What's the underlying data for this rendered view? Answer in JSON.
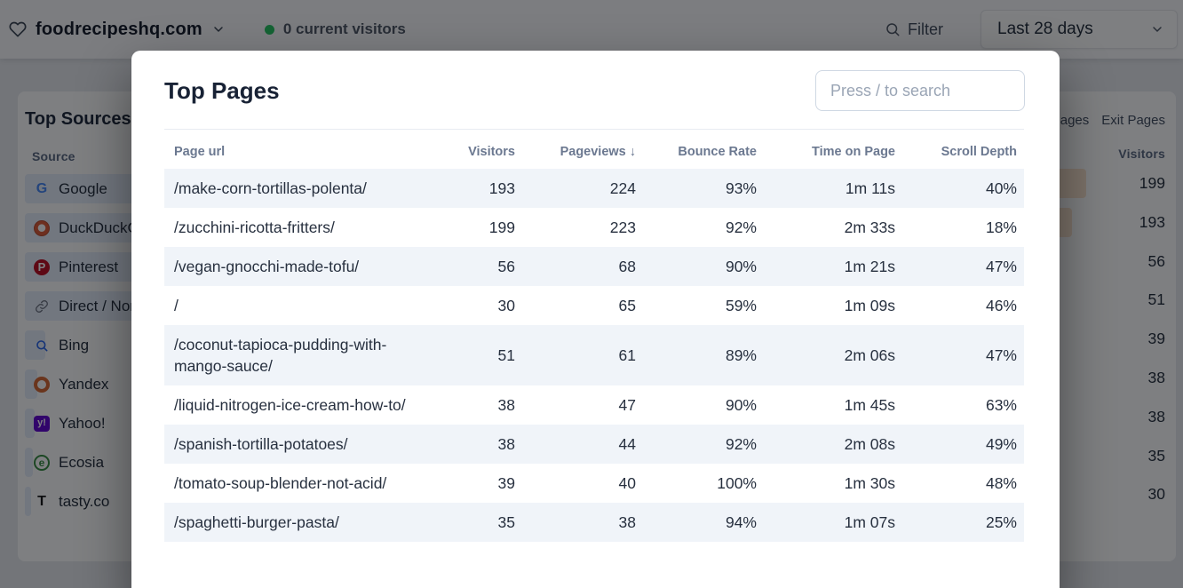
{
  "topbar": {
    "site": "foodrecipeshq.com",
    "current_visitors": "0 current visitors",
    "filter_label": "Filter",
    "date_range": "Last 28 days"
  },
  "sources_panel": {
    "title": "Top Sources",
    "column_header": "Source",
    "items": [
      {
        "name": "Google",
        "icon": "google",
        "bar_pct": 92
      },
      {
        "name": "DuckDuckGo",
        "icon": "duckduckgo",
        "bar_pct": 60
      },
      {
        "name": "Pinterest",
        "icon": "pinterest",
        "bar_pct": 28
      },
      {
        "name": "Direct / None",
        "icon": "direct",
        "bar_pct": 25
      },
      {
        "name": "Bing",
        "icon": "bing",
        "bar_pct": 3.7
      },
      {
        "name": "Yandex",
        "icon": "yandex",
        "bar_pct": 2.2
      },
      {
        "name": "Yahoo!",
        "icon": "yahoo",
        "bar_pct": 1.8
      },
      {
        "name": "Ecosia",
        "icon": "ecosia",
        "bar_pct": 1.4
      },
      {
        "name": "tasty.co",
        "icon": "tasty",
        "bar_pct": 1.1
      }
    ]
  },
  "pages_panel": {
    "tabs": [
      "Entry Pages",
      "Exit Pages"
    ],
    "column_header": "Visitors",
    "visitors": [
      199,
      193,
      56,
      51,
      39,
      38,
      38,
      35,
      30
    ]
  },
  "modal": {
    "title": "Top Pages",
    "search_placeholder": "Press / to search",
    "table": {
      "headers": {
        "page": "Page url",
        "visitors": "Visitors",
        "pageviews": "Pageviews",
        "sort_arrow": "↓",
        "bounce": "Bounce Rate",
        "time": "Time on Page",
        "scroll": "Scroll Depth"
      },
      "rows": [
        {
          "url": "/make-corn-tortillas-polenta/",
          "visitors": "193",
          "pageviews": "224",
          "bounce_rate": "93%",
          "time_on_page": "1m 11s",
          "scroll_depth": "40%"
        },
        {
          "url": "/zucchini-ricotta-fritters/",
          "visitors": "199",
          "pageviews": "223",
          "bounce_rate": "92%",
          "time_on_page": "2m 33s",
          "scroll_depth": "18%"
        },
        {
          "url": "/vegan-gnocchi-made-tofu/",
          "visitors": "56",
          "pageviews": "68",
          "bounce_rate": "90%",
          "time_on_page": "1m 21s",
          "scroll_depth": "47%"
        },
        {
          "url": "/",
          "visitors": "30",
          "pageviews": "65",
          "bounce_rate": "59%",
          "time_on_page": "1m 09s",
          "scroll_depth": "46%"
        },
        {
          "url": "/coconut-tapioca-pudding-with-mango-sauce/",
          "visitors": "51",
          "pageviews": "61",
          "bounce_rate": "89%",
          "time_on_page": "2m 06s",
          "scroll_depth": "47%"
        },
        {
          "url": "/liquid-nitrogen-ice-cream-how-to/",
          "visitors": "38",
          "pageviews": "47",
          "bounce_rate": "90%",
          "time_on_page": "1m 45s",
          "scroll_depth": "63%"
        },
        {
          "url": "/spanish-tortilla-potatoes/",
          "visitors": "38",
          "pageviews": "44",
          "bounce_rate": "92%",
          "time_on_page": "2m 08s",
          "scroll_depth": "49%"
        },
        {
          "url": "/tomato-soup-blender-not-acid/",
          "visitors": "39",
          "pageviews": "40",
          "bounce_rate": "100%",
          "time_on_page": "1m 30s",
          "scroll_depth": "48%"
        },
        {
          "url": "/spaghetti-burger-pasta/",
          "visitors": "35",
          "pageviews": "38",
          "bounce_rate": "94%",
          "time_on_page": "1m 07s",
          "scroll_depth": "25%"
        }
      ]
    }
  },
  "colors": {
    "live_dot": "#22c55e",
    "source_bar": "#e7eefb",
    "page_bar": "#fbe4cc",
    "row_stripe": "#f0f4f9"
  }
}
